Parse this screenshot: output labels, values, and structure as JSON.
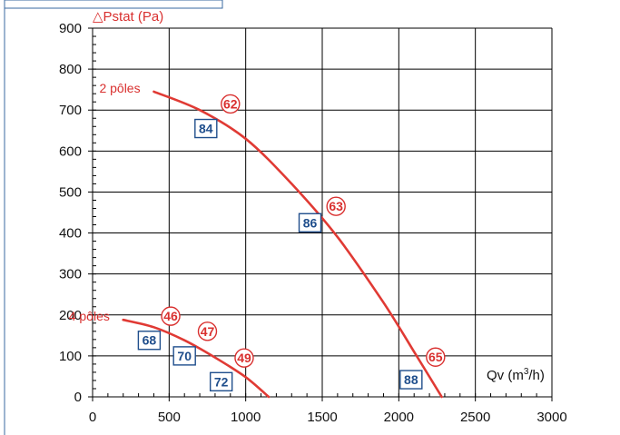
{
  "chart_data": {
    "type": "line",
    "ylabel": "△Pstat (Pa)",
    "xlabel": "Qv (m",
    "xlabel_sup": "3",
    "xlabel_tail": "/h)",
    "xlim": [
      0,
      3000
    ],
    "ylim": [
      0,
      900
    ],
    "x_ticks": [
      0,
      500,
      1000,
      1500,
      2000,
      2500,
      3000
    ],
    "y_ticks": [
      0,
      100,
      200,
      300,
      400,
      500,
      600,
      700,
      800,
      900
    ],
    "grid": true,
    "colors": {
      "curve": "#e03a34",
      "circle": "#d9302f",
      "box": "#1f4e8c",
      "grid": "#000000"
    },
    "series": [
      {
        "name": "2 pôles",
        "x": [
          400,
          700,
          1000,
          1300,
          1600,
          1900,
          2100,
          2280
        ],
        "y": [
          745,
          700,
          630,
          520,
          390,
          230,
          110,
          0
        ]
      },
      {
        "name": "4 pôles",
        "x": [
          200,
          400,
          600,
          800,
          1000,
          1150
        ],
        "y": [
          188,
          170,
          138,
          96,
          48,
          0
        ]
      }
    ],
    "circle_markers": [
      {
        "label": "62",
        "x": 900,
        "y": 715
      },
      {
        "label": "63",
        "x": 1590,
        "y": 465
      },
      {
        "label": "65",
        "x": 2240,
        "y": 97
      },
      {
        "label": "46",
        "x": 510,
        "y": 197
      },
      {
        "label": "47",
        "x": 750,
        "y": 160
      },
      {
        "label": "49",
        "x": 990,
        "y": 95
      }
    ],
    "box_markers": [
      {
        "label": "84",
        "x": 740,
        "y": 655
      },
      {
        "label": "86",
        "x": 1420,
        "y": 425
      },
      {
        "label": "88",
        "x": 2080,
        "y": 42
      },
      {
        "label": "68",
        "x": 370,
        "y": 138
      },
      {
        "label": "70",
        "x": 600,
        "y": 100
      },
      {
        "label": "72",
        "x": 840,
        "y": 37
      }
    ]
  }
}
